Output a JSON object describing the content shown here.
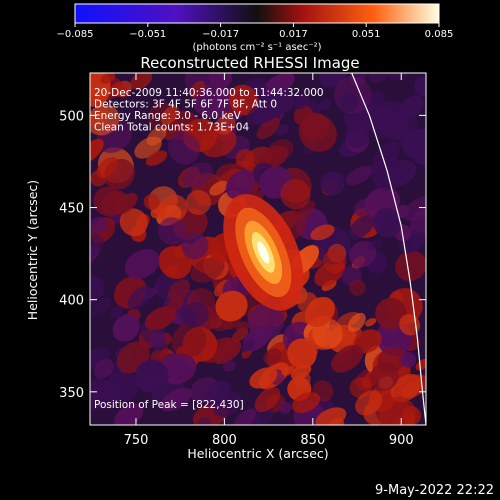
{
  "chart_data": {
    "type": "heatmap",
    "title": "Reconstructed RHESSI Image",
    "xlabel": "Heliocentric X (arcsec)",
    "ylabel": "Heliocentric Y (arcsec)",
    "xlim": [
      724,
      914
    ],
    "ylim": [
      332,
      523
    ],
    "x_ticks": [
      "750",
      "800",
      "850",
      "900"
    ],
    "y_ticks": [
      "350",
      "400",
      "450",
      "500"
    ],
    "x_tick_values": [
      750,
      800,
      850,
      900
    ],
    "y_tick_values": [
      350,
      400,
      450,
      500
    ],
    "colorbar": {
      "range": [
        -0.085,
        0.085
      ],
      "ticks": [
        "−0.085",
        "−0.051",
        "−0.017",
        "0.017",
        "0.051",
        "0.085"
      ],
      "tick_values": [
        -0.085,
        -0.051,
        -0.017,
        0.017,
        0.051,
        0.085
      ],
      "label": "(photons cm⁻² s⁻¹ asec⁻²)",
      "colors": [
        "#1010ff",
        "#5010c0",
        "#101010",
        "#a01010",
        "#ff6010",
        "#ffffe0"
      ]
    },
    "annotations": [
      "20-Dec-2009 11:40:36.000 to 11:44:32.000",
      "Detectors: 3F 4F 5F 6F 7F 8F, Att 0",
      "Energy Range: 3.0 - 6.0 keV",
      "Clean     Total counts: 1.73E+04"
    ],
    "peak_label": "Position of Peak = [822,430]",
    "peak": [
      822,
      430
    ],
    "limb_curve": [
      [
        872,
        523
      ],
      [
        882,
        500
      ],
      [
        892,
        470
      ],
      [
        900,
        440
      ],
      [
        905,
        410
      ],
      [
        909,
        380
      ],
      [
        912,
        350
      ],
      [
        914,
        332
      ]
    ]
  },
  "timestamp": "9-May-2022 22:22"
}
